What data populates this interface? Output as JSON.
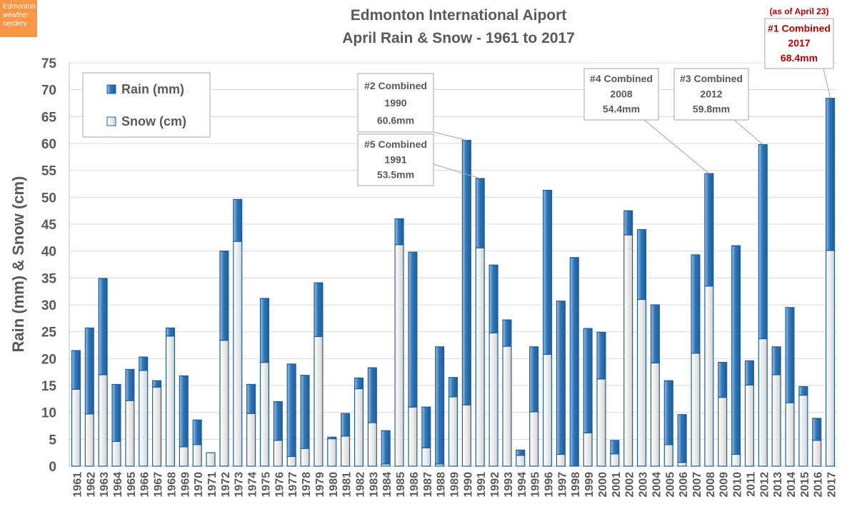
{
  "badge": {
    "lines": [
      "Edmonton",
      "weather",
      "nerdery"
    ]
  },
  "colors": {
    "rain": "#2e75b6",
    "rain_light": "#9dc3e6",
    "snow": "#e7e6e6",
    "bar_outline": "#1f5d9a",
    "grid": "#d9d9d9",
    "callout_red": "#c00000",
    "text": "#595959",
    "badge": "#f79646"
  },
  "chart_data": {
    "type": "bar",
    "stacked": true,
    "title": "Edmonton International Aiport",
    "subtitle": "April Rain & Snow - 1961 to 2017",
    "xlabel": "",
    "ylabel": "Rain (mm) & Snow (cm)",
    "ylim": [
      0,
      75
    ],
    "yticks": [
      0,
      5,
      10,
      15,
      20,
      25,
      30,
      35,
      40,
      45,
      50,
      55,
      60,
      65,
      70,
      75
    ],
    "grid": true,
    "legend_position": "top-left",
    "categories": [
      "1961",
      "1962",
      "1963",
      "1964",
      "1965",
      "1966",
      "1967",
      "1968",
      "1969",
      "1970",
      "1971",
      "1972",
      "1973",
      "1974",
      "1975",
      "1976",
      "1977",
      "1978",
      "1979",
      "1980",
      "1981",
      "1982",
      "1983",
      "1984",
      "1985",
      "1986",
      "1987",
      "1988",
      "1989",
      "1990",
      "1991",
      "1992",
      "1993",
      "1994",
      "1995",
      "1996",
      "1997",
      "1998",
      "1999",
      "2000",
      "2001",
      "2002",
      "2003",
      "2004",
      "2005",
      "2006",
      "2007",
      "2008",
      "2009",
      "2010",
      "2011",
      "2012",
      "2013",
      "2014",
      "2015",
      "2016",
      "2017"
    ],
    "series": [
      {
        "name": "Snow (cm)",
        "values": [
          14.3,
          9.7,
          17.0,
          4.6,
          12.2,
          17.8,
          14.7,
          24.2,
          3.6,
          4.0,
          2.5,
          23.4,
          41.8,
          9.8,
          19.3,
          4.8,
          1.8,
          3.3,
          24.1,
          5.1,
          5.6,
          14.4,
          8.1,
          0.4,
          41.2,
          11.0,
          3.4,
          0.4,
          12.9,
          11.4,
          40.6,
          24.8,
          22.3,
          2.0,
          10.1,
          20.8,
          2.2,
          0.0,
          6.2,
          16.2,
          2.3,
          43.0,
          31.0,
          19.2,
          4.0,
          0.7,
          21.0,
          33.5,
          12.8,
          2.2,
          15.1,
          23.7,
          17.0,
          11.8,
          13.2,
          4.8,
          40.1
        ]
      },
      {
        "name": "Rain (mm)",
        "values": [
          7.2,
          16.0,
          17.9,
          10.6,
          5.8,
          2.5,
          1.2,
          1.5,
          13.2,
          4.6,
          0.0,
          16.6,
          7.8,
          5.4,
          11.9,
          7.2,
          17.2,
          13.6,
          10.0,
          0.3,
          4.2,
          2.0,
          10.2,
          6.2,
          4.8,
          28.8,
          7.6,
          21.8,
          3.6,
          49.2,
          12.9,
          12.6,
          4.9,
          1.0,
          12.1,
          30.5,
          28.5,
          38.8,
          19.4,
          8.7,
          2.5,
          4.5,
          13.0,
          10.8,
          11.9,
          8.9,
          18.3,
          20.9,
          6.5,
          38.8,
          4.5,
          36.1,
          5.2,
          17.7,
          1.6,
          4.1,
          28.3
        ]
      }
    ],
    "annotations": [
      {
        "lines": [
          "#2 Combined",
          "1990",
          "60.6mm"
        ],
        "target": "1990",
        "color": "#595959"
      },
      {
        "lines": [
          "#5 Combined",
          "1991",
          "53.5mm"
        ],
        "target": "1991",
        "color": "#595959"
      },
      {
        "lines": [
          "#4 Combined",
          "2008",
          "54.4mm"
        ],
        "target": "2008",
        "color": "#595959"
      },
      {
        "lines": [
          "#3 Combined",
          "2012",
          "59.8mm"
        ],
        "target": "2012",
        "color": "#595959"
      },
      {
        "lines": [
          "#1 Combined",
          "2017",
          "68.4mm"
        ],
        "note": "(as of April 23)",
        "target": "2017",
        "color": "#c00000"
      }
    ]
  }
}
